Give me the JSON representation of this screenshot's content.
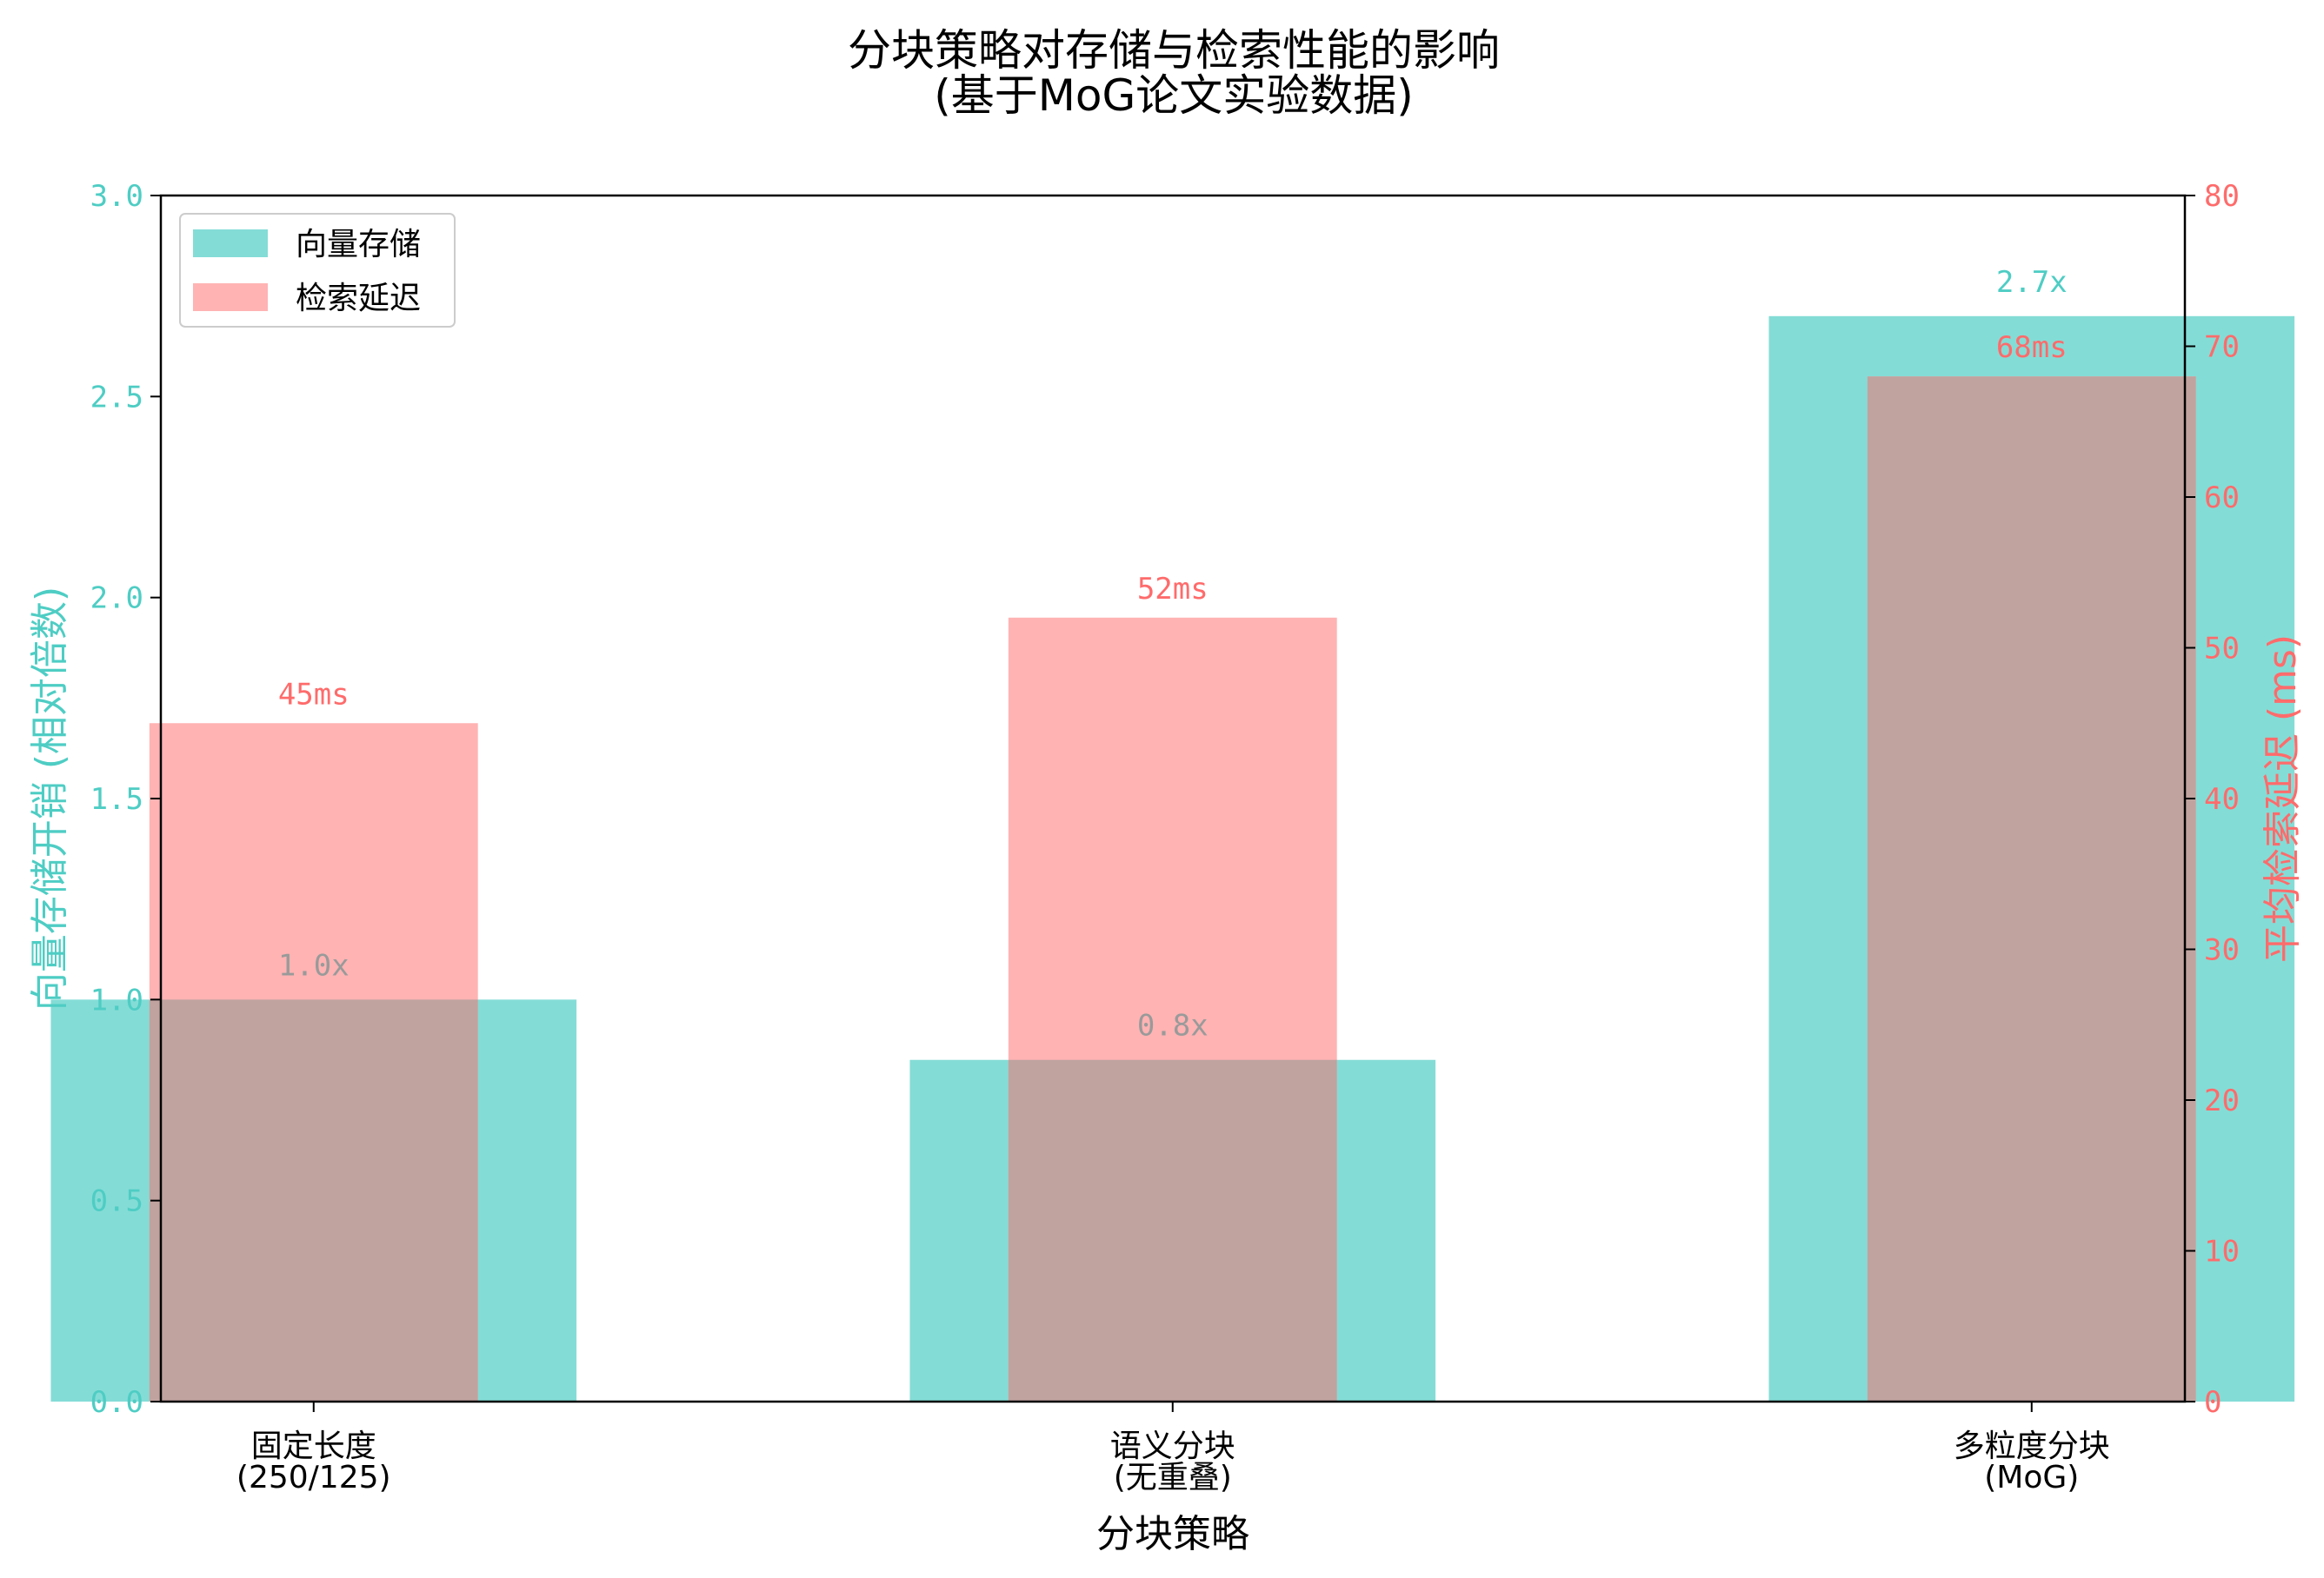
{
  "chart_data": {
    "type": "bar",
    "title_lines": [
      "分块策略对存储与检索性能的影响",
      "(基于MoG论文实验数据)"
    ],
    "xlabel": "分块策略",
    "ylabel_left": "向量存储开销 (相对倍数)",
    "ylabel_right": "平均检索延迟 (ms)",
    "categories": [
      [
        "固定长度",
        "(250/125)"
      ],
      [
        "语义分块",
        "(无重叠)"
      ],
      [
        "多粒度分块",
        "(MoG)"
      ]
    ],
    "series": [
      {
        "name": "向量存储",
        "axis": "left",
        "values": [
          1.0,
          0.85,
          2.7
        ],
        "labels": [
          "1.0x",
          "0.8x",
          "2.7x"
        ],
        "label_color": "#9a9a9a",
        "last_label_color": "#4ecdc4",
        "color": "#4ecdc4"
      },
      {
        "name": "检索延迟",
        "axis": "right",
        "values": [
          45,
          52,
          68
        ],
        "labels": [
          "45ms",
          "52ms",
          "68ms"
        ],
        "label_color": "#ff6b6b",
        "color": "#ff6b6b"
      }
    ],
    "ylim_left": [
      0,
      3.0
    ],
    "yticks_left": [
      "0.0",
      "0.5",
      "1.0",
      "1.5",
      "2.0",
      "2.5",
      "3.0"
    ],
    "ylim_right": [
      0,
      80
    ],
    "yticks_right": [
      "0",
      "10",
      "20",
      "30",
      "40",
      "50",
      "60",
      "70",
      "80"
    ],
    "legend_position": "top-left",
    "grid": false,
    "colors": {
      "left_axis": "#4ecdc4",
      "right_axis": "#ff6b6b",
      "storage_fill": "#84dcd6",
      "latency_fill": "#ffb3b3",
      "overlap_fill": "#c0a39f"
    }
  }
}
